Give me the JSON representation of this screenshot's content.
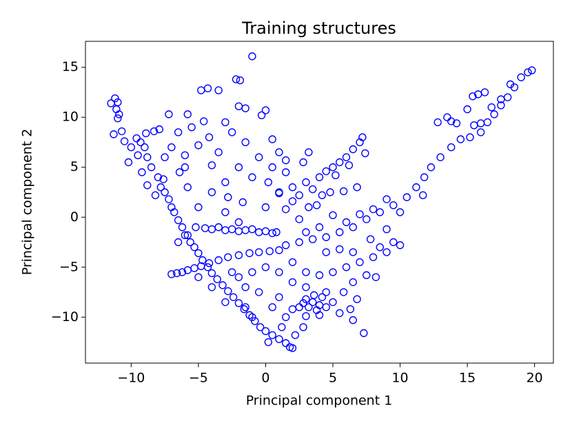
{
  "chart_data": {
    "type": "scatter",
    "title": "Training structures",
    "x_label": "Principal component 1",
    "y_label": "Principal component 2",
    "color": "#0000ff",
    "xlim": [
      -13.4,
      21.4
    ],
    "ylim": [
      -14.6,
      17.6
    ],
    "xticks": [
      {
        "value": -10,
        "label": "−10"
      },
      {
        "value": -5,
        "label": "−5"
      },
      0,
      5,
      10,
      15,
      20
    ],
    "yticks": [
      {
        "value": -10,
        "label": "−10"
      },
      {
        "value": -5,
        "label": "−5"
      },
      0,
      5,
      10,
      15
    ],
    "x": [
      -11.5,
      -11.2,
      -11,
      -11.1,
      -10.9,
      -11,
      -11.3,
      -10.7,
      -10.5,
      -10,
      -10.2,
      -9.6,
      -9.3,
      -9,
      -9.5,
      -8.8,
      -9.2,
      -8.5,
      -8.8,
      -8,
      -7.8,
      -7.5,
      -7.2,
      -7,
      -6.8,
      -6.5,
      -6.2,
      -6,
      -5.6,
      -5.3,
      -5,
      -4.7,
      -4.3,
      -4,
      -3.6,
      -3.2,
      -2.8,
      -2.4,
      -2,
      -1.6,
      -1.2,
      -0.8,
      -0.4,
      0,
      0.5,
      1,
      1.5,
      2,
      1.8,
      -8.2,
      -7.6,
      -6.4,
      -5.8,
      -8.9,
      -8.3,
      -7.9,
      -7,
      -6,
      -5.5,
      -4.6,
      -5.8,
      -7.2,
      -4.8,
      -4.3,
      -3.5,
      -2.2,
      -1.9,
      -1,
      0,
      -0.3,
      -1.5,
      -2,
      -3,
      -2.5,
      -1.5,
      -0.5,
      0.5,
      1,
      1.5,
      -3.5,
      -4,
      -2,
      -1,
      0.2,
      -3,
      -5,
      -6.5,
      -2.8,
      -1.7,
      0,
      1,
      -4,
      -5,
      -3,
      -2,
      1.5,
      2.5,
      3.2,
      0.8,
      -6,
      -7.5,
      -4.2,
      -5.2,
      -4.5,
      -4,
      -3.5,
      -3,
      -2.5,
      -2,
      -1.5,
      -1,
      -0.5,
      0,
      0.5,
      -6.5,
      -5.8,
      -7,
      -6.6,
      -6.2,
      -5.8,
      -5.3,
      -4.8,
      -4.2,
      -3.5,
      -2.8,
      -2,
      -1.2,
      -0.5,
      0.3,
      1,
      1.5,
      2.5,
      3.5,
      4.5,
      5.5,
      6.5,
      7.5,
      8.5,
      9.5,
      10.5,
      11.2,
      11.8,
      12.3,
      13,
      13.8,
      14.5,
      15.2,
      16,
      16.5,
      17,
      17.5,
      18,
      18.5,
      19,
      19.5,
      19.8,
      13.5,
      13.8,
      14.2,
      15,
      15.4,
      15.8,
      16.3,
      16.8,
      17.5,
      18.2,
      16,
      15.5,
      12.8,
      11.7,
      10,
      9,
      8,
      7,
      6,
      5,
      4,
      3,
      1,
      2,
      3,
      4,
      4.5,
      5,
      5.5,
      6,
      6.5,
      7,
      7.2,
      7.4,
      6.2,
      5.2,
      3.5,
      2.5,
      6.8,
      5.8,
      4.8,
      3.8,
      2,
      1.5,
      0.5,
      2.8,
      3.2,
      4.2,
      2,
      3,
      4,
      5,
      6,
      7,
      8,
      9,
      10,
      9.5,
      8.5,
      7.5,
      8.2,
      6.5,
      5.5,
      4.5,
      6.5,
      7.8,
      9,
      2,
      1,
      0,
      -1,
      -2,
      -1.5,
      -0.5,
      1,
      0.5,
      1.5,
      2.5,
      2.8,
      2.2,
      3,
      4.5,
      5,
      5.5,
      6.3,
      6.5,
      5.8,
      6.8,
      3,
      3.5,
      4,
      3.8,
      4.2,
      3.2,
      2.8,
      4.5,
      3.6,
      4,
      3,
      2,
      7.3,
      -1.5,
      -3,
      -4,
      -5,
      -2.5,
      -1,
      0.2,
      1.2
    ],
    "y": [
      11.4,
      11.9,
      11.5,
      10.8,
      10.3,
      9.9,
      8.3,
      8.6,
      7.6,
      7,
      5.5,
      7.9,
      7.5,
      7,
      6.2,
      6,
      4.5,
      5,
      3.2,
      4,
      3,
      2.5,
      1.8,
      1,
      0.5,
      -0.3,
      -1,
      -1.8,
      -2.5,
      -3,
      -3.6,
      -4.3,
      -5,
      -5.6,
      -6.2,
      -6.8,
      -7.4,
      -8,
      -8.6,
      -9.2,
      -9.8,
      -10.4,
      -11,
      -11.4,
      -11.8,
      -12.2,
      -12.6,
      -13.1,
      -13,
      2.2,
      3.8,
      4.5,
      3,
      8.4,
      8.6,
      8.8,
      7,
      6.2,
      9,
      9.6,
      10.3,
      10.3,
      12.7,
      12.9,
      12.7,
      13.8,
      13.7,
      16.1,
      10.7,
      10.2,
      10.9,
      11.1,
      9.5,
      8.5,
      7.5,
      6,
      7.8,
      6.5,
      5.7,
      6.5,
      5.2,
      5,
      4,
      3.5,
      3.5,
      7.2,
      8.5,
      2,
      1.5,
      1,
      2.4,
      2.5,
      1,
      0.5,
      -0.5,
      0.8,
      -0.2,
      1,
      -1.5,
      5,
      6,
      8,
      -1,
      -1.1,
      -1.2,
      -1,
      -1.3,
      -1.2,
      -1.4,
      -1.3,
      -1.2,
      -1.5,
      -1.4,
      -1.6,
      -2.5,
      -1.8,
      -5.7,
      -5.6,
      -5.5,
      -5.3,
      -5.1,
      -4.9,
      -4.6,
      -4.3,
      -4,
      -3.8,
      -3.6,
      -3.5,
      -3.4,
      -3.3,
      -2.8,
      -2.5,
      -2.2,
      -2,
      -1.5,
      -1,
      -0.2,
      0.5,
      1.2,
      2,
      3,
      4,
      5,
      6,
      7,
      7.8,
      8,
      8.5,
      9.5,
      10.3,
      11.2,
      12,
      13,
      14,
      14.5,
      14.7,
      10,
      9.6,
      9.4,
      10.8,
      12.1,
      12.3,
      12.5,
      11,
      11.8,
      13.3,
      9.4,
      9.2,
      9.5,
      2.2,
      0.5,
      1.8,
      0.8,
      0.3,
      -0.5,
      0.2,
      -1,
      -1.5,
      2.5,
      3,
      3.5,
      4,
      4.6,
      5,
      5.5,
      6,
      6.8,
      7.5,
      8,
      6.4,
      5.2,
      4.2,
      2.8,
      2.2,
      3,
      2.6,
      2.5,
      1.2,
      1.6,
      4.5,
      5,
      5.5,
      6.5,
      2.2,
      -4.5,
      -5.5,
      -5.8,
      -5.5,
      -5,
      -4.5,
      -4,
      -3.5,
      -2.8,
      -2.5,
      -3,
      -5.8,
      -6,
      -6.5,
      -3.2,
      -3.5,
      -3.5,
      -2.2,
      -1.2,
      -6.5,
      -5.5,
      -5,
      -5.5,
      -6,
      -7,
      -7.5,
      -8,
      -9,
      -10,
      -9,
      -11,
      -11.8,
      -7,
      -7.5,
      -8.5,
      -9.6,
      -9.2,
      -10.3,
      -7.5,
      -8.2,
      -8.2,
      -8.5,
      -8.8,
      -9.3,
      -8,
      -9,
      -8.6,
      -9,
      -7.8,
      -9.8,
      -9.9,
      -9.2,
      -11.6,
      -9,
      -8.5,
      -7,
      -6,
      -5.5,
      -10,
      -12.5,
      -11
    ]
  }
}
